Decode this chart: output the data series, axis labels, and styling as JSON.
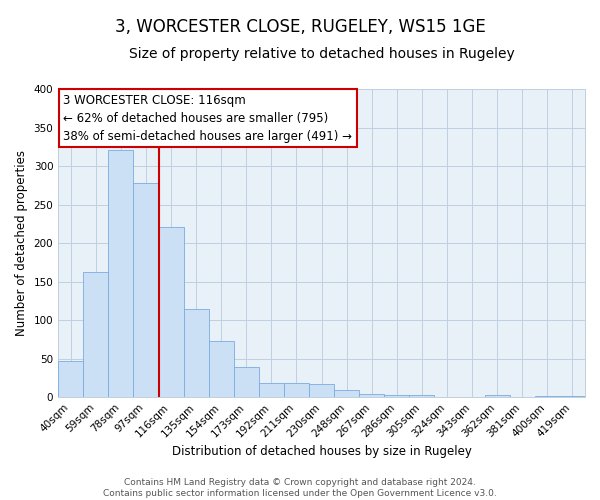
{
  "title": "3, WORCESTER CLOSE, RUGELEY, WS15 1GE",
  "subtitle": "Size of property relative to detached houses in Rugeley",
  "xlabel": "Distribution of detached houses by size in Rugeley",
  "ylabel": "Number of detached properties",
  "bar_labels": [
    "40sqm",
    "59sqm",
    "78sqm",
    "97sqm",
    "116sqm",
    "135sqm",
    "154sqm",
    "173sqm",
    "192sqm",
    "211sqm",
    "230sqm",
    "248sqm",
    "267sqm",
    "286sqm",
    "305sqm",
    "324sqm",
    "343sqm",
    "362sqm",
    "381sqm",
    "400sqm",
    "419sqm"
  ],
  "bar_values": [
    47,
    163,
    321,
    278,
    221,
    114,
    73,
    39,
    18,
    18,
    17,
    9,
    4,
    3,
    3,
    0,
    0,
    3,
    0,
    1,
    1
  ],
  "bar_color": "#cce0f5",
  "bar_edge_color": "#7aabe0",
  "vline_index": 4,
  "vline_color": "#cc0000",
  "annotation_line1": "3 WORCESTER CLOSE: 116sqm",
  "annotation_line2": "← 62% of detached houses are smaller (795)",
  "annotation_line3": "38% of semi-detached houses are larger (491) →",
  "ylim": [
    0,
    400
  ],
  "yticks": [
    0,
    50,
    100,
    150,
    200,
    250,
    300,
    350,
    400
  ],
  "footer_text": "Contains HM Land Registry data © Crown copyright and database right 2024.\nContains public sector information licensed under the Open Government Licence v3.0.",
  "title_fontsize": 12,
  "subtitle_fontsize": 10,
  "axis_label_fontsize": 8.5,
  "tick_fontsize": 7.5,
  "annotation_fontsize": 8.5,
  "footer_fontsize": 6.5,
  "plot_bg_color": "#e8f0f8",
  "fig_bg_color": "#ffffff",
  "grid_color": "#c0d0e0"
}
